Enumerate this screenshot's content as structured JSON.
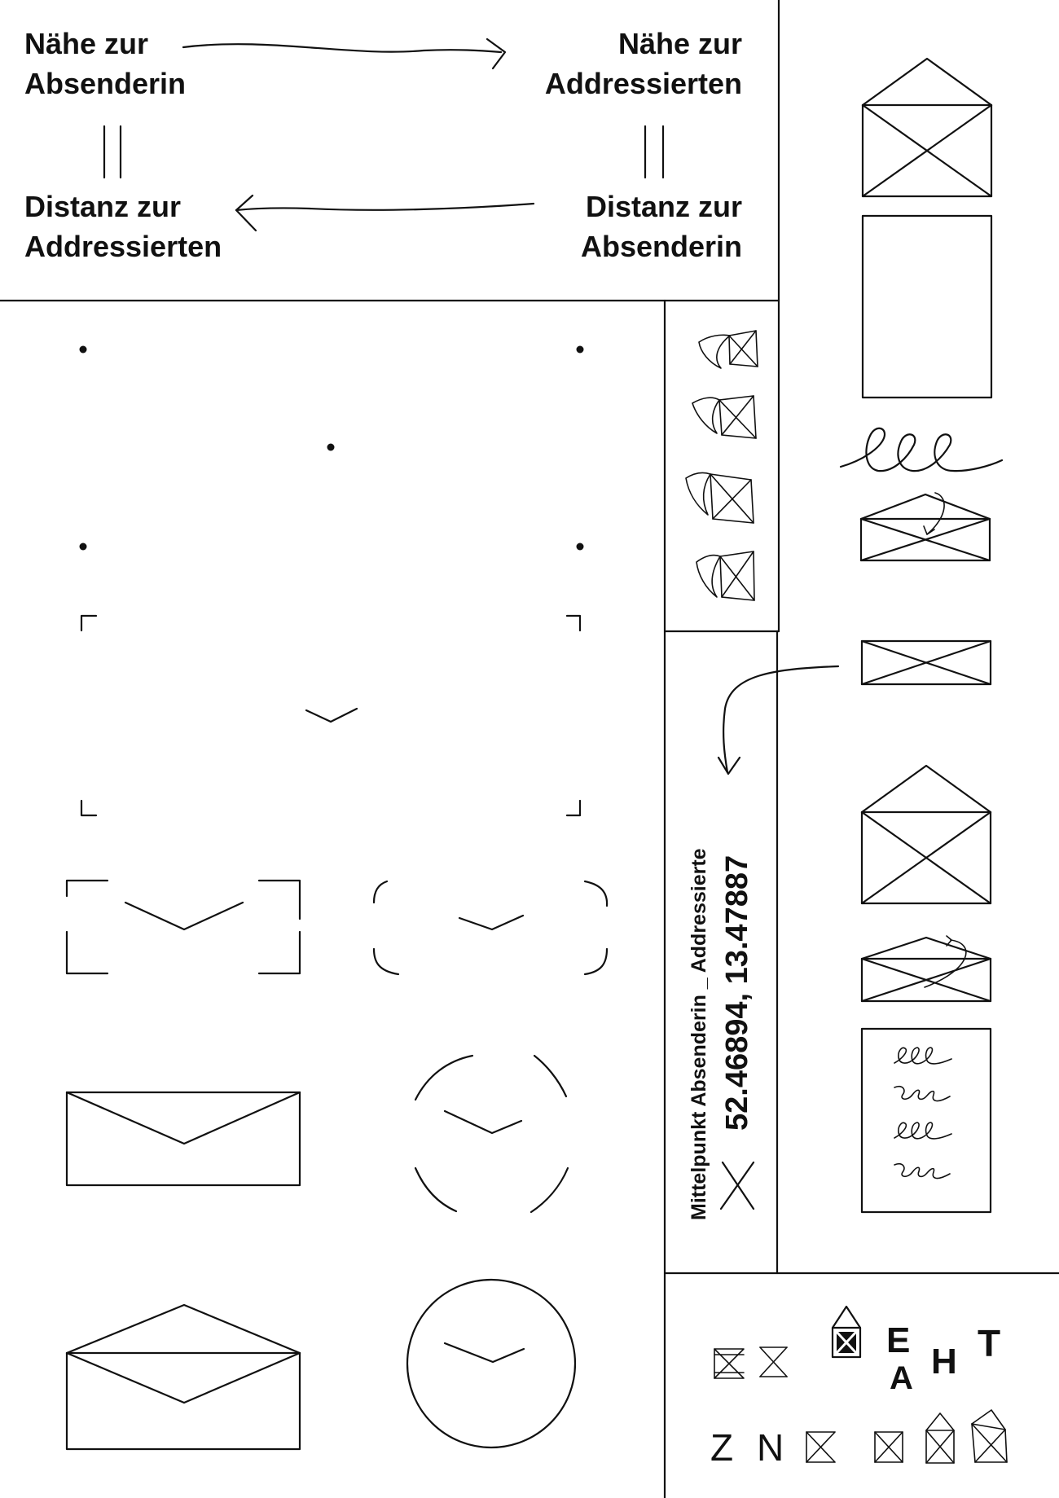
{
  "relation": {
    "top_left": "Nähe zur\nAbsenderin",
    "top_right": "Nähe zur\nAddressierten",
    "bottom_left": "Distanz zur\nAddressierten",
    "bottom_right": "Distanz zur\nAbsenderin"
  },
  "midpoint": {
    "caption": "Mittelpunkt Absenderin _ Addressierte",
    "coordinates": "52.46894, 13.47887"
  },
  "letters": {
    "row1": [
      "E",
      "H",
      "T"
    ],
    "row1_low": [
      "A"
    ],
    "row2": [
      "Z",
      "N"
    ]
  },
  "colors": {
    "ink": "#111111",
    "paper": "#ffffff"
  }
}
